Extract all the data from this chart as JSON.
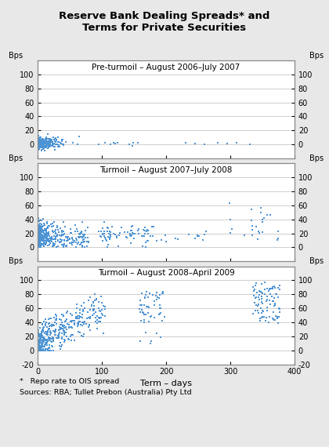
{
  "title": "Reserve Bank Dealing Spreads* and\nTerms for Private Securities",
  "subtitle1": "Pre-turmoil – August 2006–July 2007",
  "subtitle2": "Turmoil – August 2007–July 2008",
  "subtitle3": "Turmoil – August 2008–April 2009",
  "xlabel": "Term – days",
  "dot_color": "#4d94d4",
  "xlim": [
    0,
    400
  ],
  "panel1_ylim": [
    -20,
    120
  ],
  "panel2_ylim": [
    -20,
    120
  ],
  "panel3_ylim": [
    -20,
    120
  ],
  "panel1_yticks": [
    0,
    20,
    40,
    60,
    80,
    100
  ],
  "panel2_yticks": [
    0,
    20,
    40,
    60,
    80,
    100
  ],
  "panel3_yticks": [
    -20,
    0,
    20,
    40,
    60,
    80,
    100
  ],
  "xticks": [
    0,
    100,
    200,
    300,
    400
  ],
  "footnote1": "*   Repo rate to OIS spread",
  "footnote2": "Sources: RBA; Tullet Prebon (Australia) Pty Ltd",
  "bg_color": "#e8e8e8",
  "panel_bg": "#ffffff",
  "grid_color": "#c8c8c8"
}
